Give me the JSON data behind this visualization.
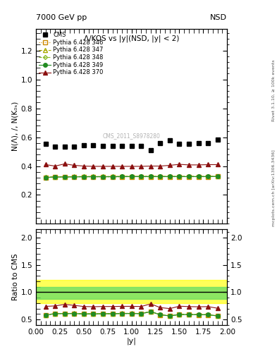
{
  "title_top_left": "7000 GeV pp",
  "title_top_right": "NSD",
  "plot_title": "Λ/KOS vs |y|(NSD, |y| < 2)",
  "ylabel_main": "N(Λ), /, N(K₀ₛ)",
  "ylabel_ratio": "Ratio to CMS",
  "xlabel": "|y|",
  "watermark": "CMS_2011_S8978280",
  "side_text_top": "Rivet 3.1.10, ≥ 100k events",
  "side_text_bot": "mcplots.cern.ch [arXiv:1306.3436]",
  "ylim_main": [
    0.0,
    1.35
  ],
  "ylim_ratio": [
    0.4,
    2.15
  ],
  "yticks_main": [
    0.2,
    0.4,
    0.6,
    0.8,
    1.0,
    1.2
  ],
  "ratio_yticks": [
    0.5,
    1.0,
    1.5,
    2.0
  ],
  "cms_x": [
    0.1,
    0.2,
    0.3,
    0.4,
    0.5,
    0.6,
    0.7,
    0.8,
    0.9,
    1.0,
    1.1,
    1.2,
    1.3,
    1.4,
    1.5,
    1.6,
    1.7,
    1.8,
    1.9
  ],
  "cms_y": [
    0.555,
    0.535,
    0.535,
    0.535,
    0.543,
    0.543,
    0.54,
    0.54,
    0.538,
    0.538,
    0.54,
    0.51,
    0.558,
    0.58,
    0.555,
    0.555,
    0.558,
    0.558,
    0.582
  ],
  "p346_x": [
    0.1,
    0.2,
    0.3,
    0.4,
    0.5,
    0.6,
    0.7,
    0.8,
    0.9,
    1.0,
    1.1,
    1.2,
    1.3,
    1.4,
    1.5,
    1.6,
    1.7,
    1.8,
    1.9
  ],
  "p346_y": [
    0.32,
    0.325,
    0.325,
    0.325,
    0.325,
    0.325,
    0.325,
    0.325,
    0.325,
    0.326,
    0.326,
    0.326,
    0.326,
    0.326,
    0.326,
    0.326,
    0.326,
    0.326,
    0.328
  ],
  "p347_x": [
    0.1,
    0.2,
    0.3,
    0.4,
    0.5,
    0.6,
    0.7,
    0.8,
    0.9,
    1.0,
    1.1,
    1.2,
    1.3,
    1.4,
    1.5,
    1.6,
    1.7,
    1.8,
    1.9
  ],
  "p347_y": [
    0.323,
    0.326,
    0.326,
    0.327,
    0.328,
    0.328,
    0.328,
    0.328,
    0.329,
    0.329,
    0.329,
    0.329,
    0.329,
    0.329,
    0.329,
    0.329,
    0.329,
    0.329,
    0.33
  ],
  "p348_x": [
    0.1,
    0.2,
    0.3,
    0.4,
    0.5,
    0.6,
    0.7,
    0.8,
    0.9,
    1.0,
    1.1,
    1.2,
    1.3,
    1.4,
    1.5,
    1.6,
    1.7,
    1.8,
    1.9
  ],
  "p348_y": [
    0.322,
    0.325,
    0.325,
    0.326,
    0.327,
    0.327,
    0.327,
    0.327,
    0.328,
    0.328,
    0.328,
    0.328,
    0.328,
    0.328,
    0.328,
    0.328,
    0.328,
    0.328,
    0.329
  ],
  "p349_x": [
    0.1,
    0.2,
    0.3,
    0.4,
    0.5,
    0.6,
    0.7,
    0.8,
    0.9,
    1.0,
    1.1,
    1.2,
    1.3,
    1.4,
    1.5,
    1.6,
    1.7,
    1.8,
    1.9
  ],
  "p349_y": [
    0.321,
    0.324,
    0.324,
    0.325,
    0.326,
    0.326,
    0.326,
    0.326,
    0.327,
    0.327,
    0.327,
    0.327,
    0.327,
    0.327,
    0.327,
    0.327,
    0.327,
    0.327,
    0.328
  ],
  "p370_x": [
    0.1,
    0.2,
    0.3,
    0.4,
    0.5,
    0.6,
    0.7,
    0.8,
    0.9,
    1.0,
    1.1,
    1.2,
    1.3,
    1.4,
    1.5,
    1.6,
    1.7,
    1.8,
    1.9
  ],
  "p370_y": [
    0.41,
    0.4,
    0.415,
    0.405,
    0.4,
    0.398,
    0.398,
    0.398,
    0.398,
    0.398,
    0.398,
    0.4,
    0.4,
    0.405,
    0.412,
    0.408,
    0.408,
    0.41,
    0.41
  ],
  "band_green_lo": 0.88,
  "band_green_hi": 1.1,
  "band_yellow_lo": 0.8,
  "band_yellow_hi": 1.22,
  "color_346": "#cc8800",
  "color_347": "#aaaa00",
  "color_348": "#88bb22",
  "color_349": "#228b22",
  "color_370": "#8b1010",
  "color_cms": "#000000",
  "bg_color": "#ffffff",
  "xlim": [
    0,
    2.0
  ]
}
